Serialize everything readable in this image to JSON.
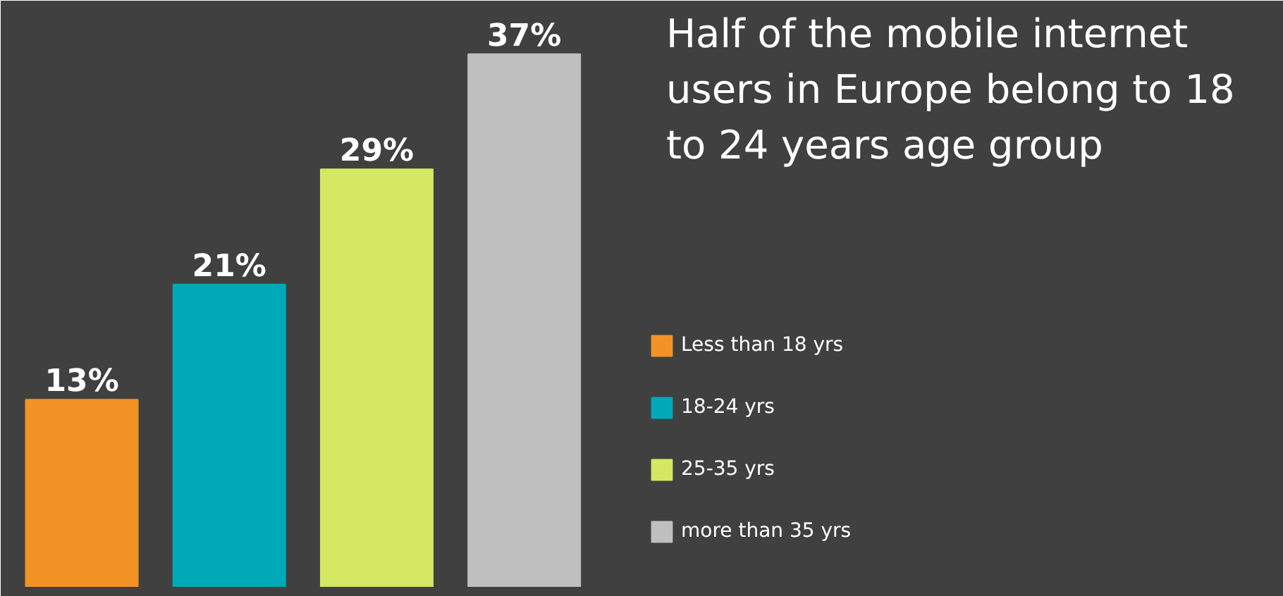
{
  "chart_data": {
    "type": "bar",
    "title": "Half of the mobile internet users in Europe belong to 18 to 24 years age group",
    "categories": [
      null,
      null,
      null,
      null
    ],
    "series": [
      {
        "name": "Less than 18 yrs",
        "color": "#f39325",
        "values": [
          13,
          null,
          null,
          null
        ],
        "value_labels": [
          "13%",
          null,
          null,
          null
        ]
      },
      {
        "name": "18-24 yrs",
        "color": "#00a9b8",
        "values": [
          null,
          21,
          null,
          null
        ],
        "value_labels": [
          null,
          "21%",
          null,
          null
        ]
      },
      {
        "name": "25-35 yrs",
        "color": "#d4e863",
        "values": [
          null,
          null,
          29,
          null
        ],
        "value_labels": [
          null,
          null,
          "29%",
          null
        ]
      },
      {
        "name": "more than 35 yrs",
        "color": "#bfbfbf",
        "values": [
          null,
          null,
          null,
          37
        ],
        "value_labels": [
          null,
          null,
          null,
          "37%"
        ]
      }
    ],
    "stacked": true,
    "legend": "right",
    "tick_labels": false,
    "grid": false
  }
}
